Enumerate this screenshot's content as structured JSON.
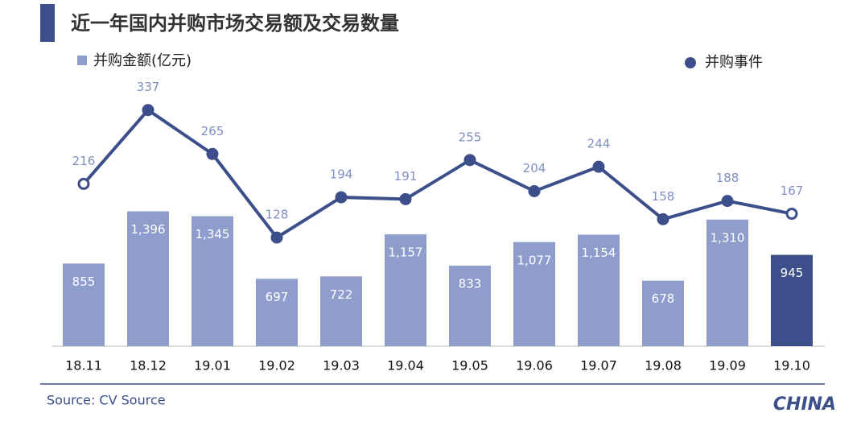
{
  "chart_data": {
    "type": "bar-line",
    "title": "近一年国内并购市场交易额及交易数量",
    "source": "Source: CV Source",
    "logo": "CHINA",
    "categories": [
      "18.11",
      "18.12",
      "19.01",
      "19.02",
      "19.03",
      "19.04",
      "19.05",
      "19.06",
      "19.07",
      "19.08",
      "19.09",
      "19.10"
    ],
    "ylim": [
      0,
      3000
    ],
    "y2lim": [
      -50,
      425
    ],
    "series": [
      {
        "name": "并购金额(亿元)",
        "type": "bar",
        "color": "#8e9dcc",
        "colors": [
          "#8e9dcc",
          "#8e9dcc",
          "#8e9dcc",
          "#8e9dcc",
          "#8e9dcc",
          "#8e9dcc",
          "#8e9dcc",
          "#8e9dcc",
          "#8e9dcc",
          "#8e9dcc",
          "#8e9dcc",
          "#3d4f8a"
        ],
        "values": [
          855,
          1396,
          1345,
          697,
          722,
          1157,
          833,
          1077,
          1154,
          678,
          1310,
          945
        ],
        "value_labels": [
          "855",
          "1,396",
          "1,345",
          "697",
          "722",
          "1,157",
          "833",
          "1,077",
          "1,154",
          "678",
          "1,310",
          "945"
        ]
      },
      {
        "name": "并购事件",
        "type": "line",
        "axis": "y2",
        "color": "#3d4f8a",
        "marker_colors": [
          "#ffffff",
          "#3d4f8a",
          "#3d4f8a",
          "#3d4f8a",
          "#3d4f8a",
          "#3d4f8a",
          "#3d4f8a",
          "#3d4f8a",
          "#3d4f8a",
          "#3d4f8a",
          "#3d4f8a",
          "#ffffff"
        ],
        "label_color": "#7f8fc0",
        "values": [
          216,
          337,
          265,
          128,
          194,
          191,
          255,
          204,
          244,
          158,
          188,
          167
        ]
      }
    ]
  }
}
